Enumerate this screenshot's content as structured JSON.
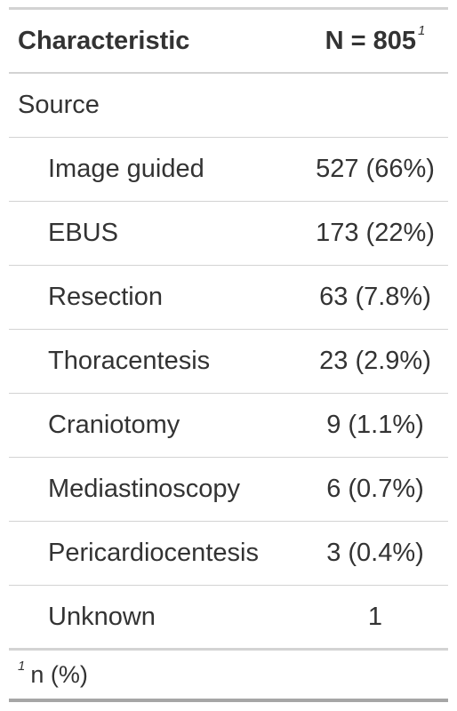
{
  "table": {
    "header": {
      "label": "Characteristic",
      "value": "N = 805",
      "footnote_mark": "1"
    },
    "group": {
      "label": "Source"
    },
    "rows": [
      {
        "label": "Image guided",
        "value": "527 (66%)"
      },
      {
        "label": "EBUS",
        "value": "173 (22%)"
      },
      {
        "label": "Resection",
        "value": "63 (7.8%)"
      },
      {
        "label": "Thoracentesis",
        "value": "23 (2.9%)"
      },
      {
        "label": "Craniotomy",
        "value": "9 (1.1%)"
      },
      {
        "label": "Mediastinoscopy",
        "value": "6 (0.7%)"
      },
      {
        "label": "Pericardiocentesis",
        "value": "3 (0.4%)"
      },
      {
        "label": "Unknown",
        "value": "1"
      }
    ],
    "footnote": {
      "mark": "1",
      "text": "n (%)"
    }
  }
}
